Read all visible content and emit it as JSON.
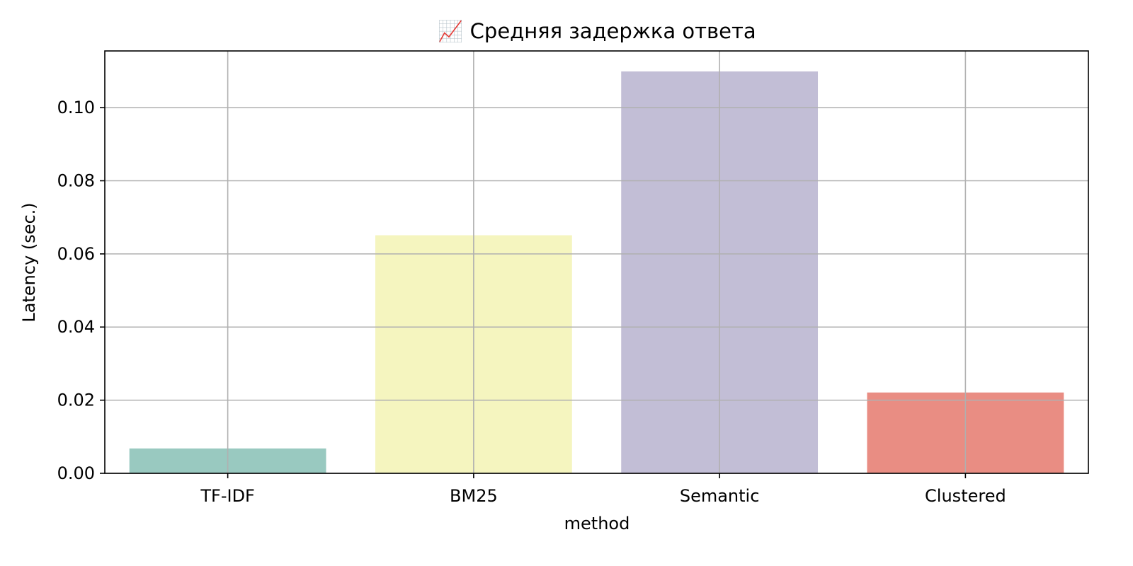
{
  "chart_data": {
    "type": "bar",
    "title": "📈 Средняя задержка ответа",
    "xlabel": "method",
    "ylabel": "Latency (sec.)",
    "categories": [
      "TF-IDF",
      "BM25",
      "Semantic",
      "Clustered"
    ],
    "values": [
      0.0068,
      0.0651,
      0.1099,
      0.0221
    ],
    "colors": [
      "#99c9c0",
      "#f5f5bf",
      "#c2bed6",
      "#e98d83"
    ],
    "ylim": [
      0,
      0.1155
    ],
    "yticks": [
      0.0,
      0.02,
      0.04,
      0.06,
      0.08,
      0.1
    ],
    "ytick_labels": [
      "0.00",
      "0.02",
      "0.04",
      "0.06",
      "0.08",
      "0.10"
    ],
    "grid": true
  }
}
